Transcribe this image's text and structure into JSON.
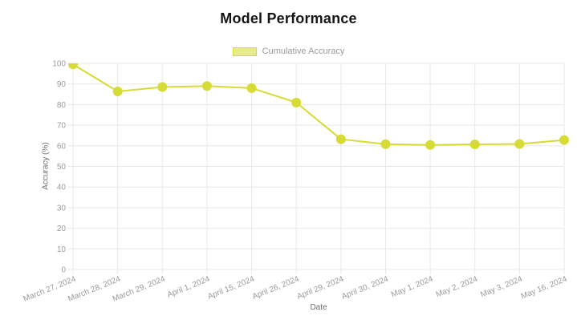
{
  "title": "Model Performance",
  "legend": {
    "label": "Cumulative Accuracy",
    "swatch_fill": "#e8ea8e",
    "swatch_border": "#d7db35"
  },
  "axes": {
    "xlabel": "Date",
    "ylabel": "Accuracy (%)"
  },
  "colors": {
    "series": "#d7db35",
    "grid": "#e8e8e8",
    "tick_label": "#9a9a9a",
    "axis_title": "#6e6e6e",
    "title": "#161616",
    "background": "#ffffff"
  },
  "chart_data": {
    "type": "line",
    "title": "Model Performance",
    "xlabel": "Date",
    "ylabel": "Accuracy (%)",
    "categories": [
      "March 27, 2024",
      "March 28, 2024",
      "March 29, 2024",
      "April 1, 2024",
      "April 15, 2024",
      "April 26, 2024",
      "April 29, 2024",
      "April 30, 2024",
      "May 1, 2024",
      "May 2, 2024",
      "May 3, 2024",
      "May 16, 2024"
    ],
    "series": [
      {
        "name": "Cumulative Accuracy",
        "color": "#d7db35",
        "line_width": 2,
        "marker_radius": 6,
        "values": [
          99.5,
          86.4,
          88.5,
          89.0,
          88.0,
          81.0,
          63.2,
          60.8,
          60.4,
          60.7,
          60.9,
          62.8
        ]
      }
    ],
    "ylim": [
      0,
      100
    ],
    "yticks": [
      0,
      10,
      20,
      30,
      40,
      50,
      60,
      70,
      80,
      90,
      100
    ],
    "grid": true,
    "legend_position": "top",
    "x_tick_rotation_deg": -22
  }
}
